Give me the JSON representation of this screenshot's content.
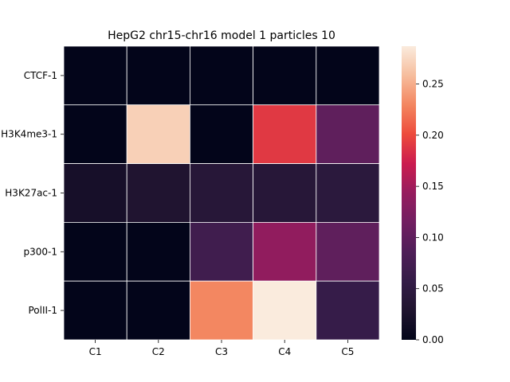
{
  "chart_data": {
    "type": "heatmap",
    "title": "HepG2 chr15-chr16 model 1 particles 10",
    "xlabel": "",
    "ylabel": "",
    "columns": [
      "C1",
      "C2",
      "C3",
      "C4",
      "C5"
    ],
    "rows": [
      "CTCF-1",
      "H3K4me3-1",
      "H3K27ac-1",
      "p300-1",
      "PolII-1"
    ],
    "values": [
      [
        0.0,
        0.0,
        0.0,
        0.0,
        0.0
      ],
      [
        0.0,
        0.27,
        0.0,
        0.19,
        0.1
      ],
      [
        0.02,
        0.03,
        0.04,
        0.04,
        0.045
      ],
      [
        0.0,
        0.0,
        0.07,
        0.14,
        0.1
      ],
      [
        0.0,
        0.0,
        0.23,
        0.287,
        0.06
      ]
    ],
    "colorbar": {
      "vmin": 0.0,
      "vmax": 0.287,
      "ticks": [
        0.0,
        0.05,
        0.1,
        0.15,
        0.2,
        0.25
      ],
      "tick_labels": [
        "0.00",
        "0.05",
        "0.10",
        "0.15",
        "0.20",
        "0.25"
      ],
      "colormap": "rocket"
    },
    "grid": false,
    "cell_border_color": "#ffffff"
  }
}
